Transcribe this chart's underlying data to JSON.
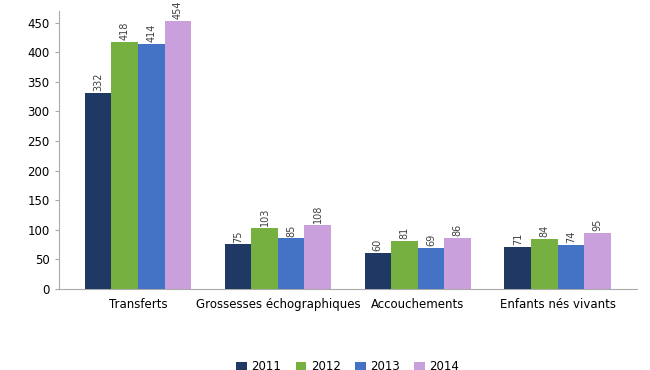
{
  "categories": [
    "Transferts",
    "Grossesses échographiques",
    "Accouchements",
    "Enfants nés vivants"
  ],
  "years": [
    "2011",
    "2012",
    "2013",
    "2014"
  ],
  "values": {
    "2011": [
      332,
      75,
      60,
      71
    ],
    "2012": [
      418,
      103,
      81,
      84
    ],
    "2013": [
      414,
      85,
      69,
      74
    ],
    "2014": [
      454,
      108,
      86,
      95
    ]
  },
  "colors": {
    "2011": "#1F3864",
    "2012": "#76B041",
    "2013": "#4472C4",
    "2014": "#C9A0DC"
  },
  "ylim": [
    0,
    470
  ],
  "yticks": [
    0,
    50,
    100,
    150,
    200,
    250,
    300,
    350,
    400,
    450
  ],
  "bar_width": 0.19,
  "value_fontsize": 7.0,
  "label_fontsize": 8.5,
  "tick_fontsize": 8.5,
  "legend_fontsize": 8.5,
  "background_color": "#ffffff",
  "value_color": "#404040"
}
